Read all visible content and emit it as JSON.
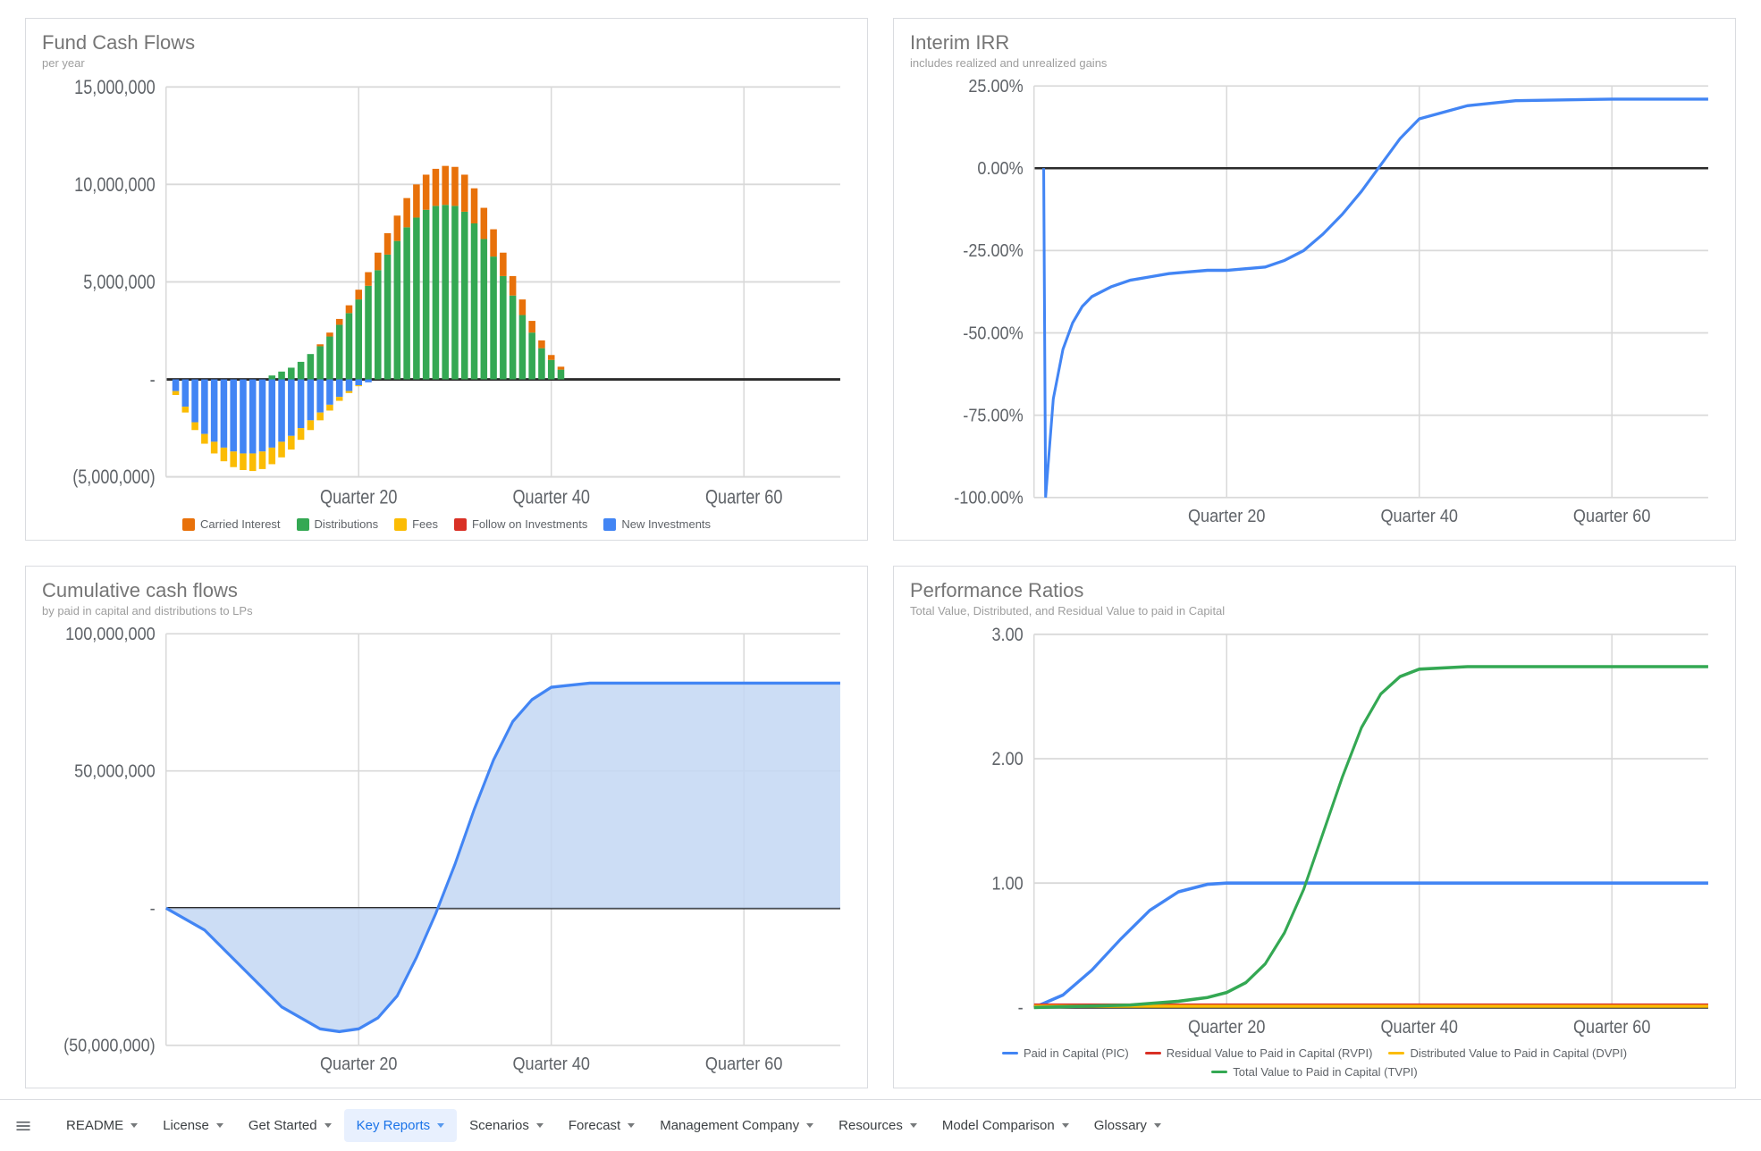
{
  "colors": {
    "grid": "#d9d9d9",
    "axis": "#2b2b2b",
    "card_border": "#dadce0",
    "title": "#757575",
    "subtitle": "#9e9e9e",
    "tab_active_bg": "#e8f0fe",
    "tab_active_fg": "#1a73e8"
  },
  "sheet_tabs": {
    "icon": "hamburger",
    "items": [
      {
        "label": "README",
        "active": false
      },
      {
        "label": "License",
        "active": false
      },
      {
        "label": "Get Started",
        "active": false
      },
      {
        "label": "Key Reports",
        "active": true
      },
      {
        "label": "Scenarios",
        "active": false
      },
      {
        "label": "Forecast",
        "active": false
      },
      {
        "label": "Management Company",
        "active": false
      },
      {
        "label": "Resources",
        "active": false
      },
      {
        "label": "Model Comparison",
        "active": false
      },
      {
        "label": "Glossary",
        "active": false
      }
    ]
  },
  "chart1": {
    "type": "stacked-bar",
    "title": "Fund Cash Flows",
    "subtitle": "per year",
    "x_ticks": [
      20,
      40,
      60
    ],
    "x_tick_labels": [
      "Quarter 20",
      "Quarter 40",
      "Quarter 60"
    ],
    "x_range": [
      0,
      70
    ],
    "y_ticks": [
      -5000000,
      0,
      5000000,
      10000000,
      15000000
    ],
    "y_tick_labels": [
      "(5,000,000)",
      "-",
      "5,000,000",
      "10,000,000",
      "15,000,000"
    ],
    "y_range": [
      -5000000,
      15000000
    ],
    "bar_width": 0.7,
    "series": {
      "carried_interest": {
        "label": "Carried Interest",
        "color": "#e8710a"
      },
      "distributions": {
        "label": "Distributions",
        "color": "#34a853"
      },
      "fees": {
        "label": "Fees",
        "color": "#fbbc04"
      },
      "follow_on": {
        "label": "Follow on Investments",
        "color": "#d93025"
      },
      "new_investments": {
        "label": "New Investments",
        "color": "#4285f4"
      }
    },
    "legend_order": [
      "carried_interest",
      "distributions",
      "fees",
      "follow_on",
      "new_investments"
    ],
    "quarters": [
      1,
      2,
      3,
      4,
      5,
      6,
      7,
      8,
      9,
      10,
      11,
      12,
      13,
      14,
      15,
      16,
      17,
      18,
      19,
      20,
      21,
      22,
      23,
      24,
      25,
      26,
      27,
      28,
      29,
      30,
      31,
      32,
      33,
      34,
      35,
      36,
      37,
      38,
      39,
      40,
      41,
      42
    ],
    "pos_carried": [
      0,
      0,
      0,
      0,
      0,
      0,
      0,
      0,
      0,
      0,
      0,
      0,
      0,
      0,
      0,
      0.1,
      0.2,
      0.3,
      0.4,
      0.5,
      0.7,
      0.9,
      1.1,
      1.3,
      1.5,
      1.7,
      1.8,
      1.9,
      2.0,
      2.0,
      1.9,
      1.8,
      1.6,
      1.4,
      1.2,
      1.0,
      0.8,
      0.6,
      0.4,
      0.25,
      0.15,
      0.0
    ],
    "pos_distrib": [
      0,
      0,
      0,
      0,
      0,
      0,
      0,
      0,
      0,
      0,
      0.2,
      0.4,
      0.6,
      0.9,
      1.3,
      1.7,
      2.2,
      2.8,
      3.4,
      4.1,
      4.8,
      5.6,
      6.4,
      7.1,
      7.8,
      8.3,
      8.7,
      8.9,
      8.95,
      8.9,
      8.6,
      8.0,
      7.2,
      6.3,
      5.3,
      4.3,
      3.3,
      2.4,
      1.6,
      1.0,
      0.5,
      0.0
    ],
    "neg_newinv": [
      0.6,
      1.4,
      2.2,
      2.8,
      3.2,
      3.5,
      3.7,
      3.8,
      3.8,
      3.7,
      3.5,
      3.2,
      2.9,
      2.5,
      2.1,
      1.7,
      1.3,
      0.9,
      0.6,
      0.3,
      0.15,
      0.0,
      0,
      0,
      0,
      0,
      0,
      0,
      0,
      0,
      0,
      0,
      0,
      0,
      0,
      0,
      0,
      0,
      0,
      0,
      0,
      0
    ],
    "neg_fees": [
      0.2,
      0.3,
      0.4,
      0.5,
      0.6,
      0.7,
      0.8,
      0.85,
      0.9,
      0.9,
      0.85,
      0.8,
      0.7,
      0.6,
      0.5,
      0.4,
      0.3,
      0.2,
      0.1,
      0.05,
      0.0,
      0.0,
      0,
      0,
      0,
      0,
      0,
      0,
      0,
      0,
      0,
      0,
      0,
      0,
      0,
      0,
      0,
      0,
      0,
      0,
      0,
      0
    ],
    "value_scale_note": "pos_/neg_ arrays are in millions; multiply by 1,000,000"
  },
  "chart2": {
    "type": "line",
    "title": "Interim IRR",
    "subtitle": "includes realized and unrealized gains",
    "x_ticks": [
      20,
      40,
      60
    ],
    "x_tick_labels": [
      "Quarter 20",
      "Quarter 40",
      "Quarter 60"
    ],
    "x_range": [
      0,
      70
    ],
    "y_ticks": [
      -100,
      -75,
      -50,
      -25,
      0,
      25
    ],
    "y_tick_labels": [
      "-100.00%",
      "-75.00%",
      "-50.00%",
      "-25.00%",
      "0.00%",
      "25.00%"
    ],
    "y_range": [
      -100,
      25
    ],
    "line_color": "#4285f4",
    "line_width": 2,
    "points_x": [
      1,
      1.2,
      2,
      3,
      4,
      5,
      6,
      8,
      10,
      12,
      14,
      16,
      18,
      20,
      22,
      24,
      26,
      28,
      30,
      32,
      34,
      36,
      38,
      40,
      45,
      50,
      60,
      70
    ],
    "points_y": [
      0,
      -100,
      -70,
      -55,
      -47,
      -42,
      -39,
      -36,
      -34,
      -33,
      -32,
      -31.5,
      -31,
      -31,
      -30.5,
      -30,
      -28,
      -25,
      -20,
      -14,
      -7,
      1,
      9,
      15,
      19,
      20.5,
      21,
      21
    ]
  },
  "chart3": {
    "type": "area",
    "title": "Cumulative cash flows",
    "subtitle": "by paid in capital and distributions to LPs",
    "x_ticks": [
      20,
      40,
      60
    ],
    "x_tick_labels": [
      "Quarter 20",
      "Quarter 40",
      "Quarter 60"
    ],
    "x_range": [
      0,
      70
    ],
    "y_ticks": [
      -50000000,
      0,
      50000000,
      100000000
    ],
    "y_tick_labels": [
      "(50,000,000)",
      "-",
      "50,000,000",
      "100,000,000"
    ],
    "y_range": [
      -50000000,
      100000000
    ],
    "line_color": "#4285f4",
    "fill_color": "#c3d7f3",
    "fill_opacity": 0.85,
    "line_width": 2,
    "points_x": [
      0,
      4,
      8,
      12,
      16,
      18,
      20,
      22,
      24,
      26,
      28,
      30,
      32,
      34,
      36,
      38,
      40,
      44,
      50,
      60,
      70
    ],
    "points_y": [
      0,
      -8,
      -22,
      -36,
      -44,
      -45,
      -44,
      -40,
      -32,
      -18,
      -2,
      16,
      36,
      54,
      68,
      76,
      80.5,
      82,
      82,
      82,
      82
    ],
    "value_scale_note": "points_y are in millions"
  },
  "chart4": {
    "type": "multi-line",
    "title": "Performance Ratios",
    "subtitle": "Total Value, Distributed, and Residual Value to paid in Capital",
    "x_ticks": [
      20,
      40,
      60
    ],
    "x_tick_labels": [
      "Quarter 20",
      "Quarter 40",
      "Quarter 60"
    ],
    "x_range": [
      0,
      70
    ],
    "y_ticks": [
      0,
      1,
      2,
      3
    ],
    "y_tick_labels": [
      "-",
      "1.00",
      "2.00",
      "3.00"
    ],
    "y_range": [
      0,
      3
    ],
    "series": {
      "pic": {
        "label": "Paid in Capital (PIC)",
        "color": "#4285f4",
        "x": [
          0,
          3,
          6,
          9,
          12,
          15,
          18,
          20,
          25,
          30,
          40,
          50,
          70
        ],
        "y": [
          0,
          0.1,
          0.3,
          0.55,
          0.78,
          0.93,
          0.99,
          1.0,
          1.0,
          1.0,
          1.0,
          1.0,
          1.0
        ]
      },
      "rvpi": {
        "label": "Residual Value to Paid in Capital (RVPI)",
        "color": "#d93025",
        "x": [
          0,
          70
        ],
        "y": [
          0.02,
          0.02
        ]
      },
      "dvpi": {
        "label": "Distributed Value to Paid in Capital (DVPI)",
        "color": "#fbbc04",
        "x": [
          0,
          70
        ],
        "y": [
          0.01,
          0.01
        ]
      },
      "tvpi": {
        "label": "Total Value to Paid in Capital (TVPI)",
        "color": "#34a853",
        "x": [
          0,
          10,
          15,
          18,
          20,
          22,
          24,
          26,
          28,
          30,
          32,
          34,
          36,
          38,
          40,
          45,
          50,
          70
        ],
        "y": [
          0,
          0.02,
          0.05,
          0.08,
          0.12,
          0.2,
          0.35,
          0.6,
          0.95,
          1.4,
          1.85,
          2.25,
          2.52,
          2.66,
          2.72,
          2.74,
          2.74,
          2.74
        ]
      }
    },
    "legend_order": [
      "pic",
      "rvpi",
      "dvpi",
      "tvpi"
    ],
    "line_width": 2
  }
}
